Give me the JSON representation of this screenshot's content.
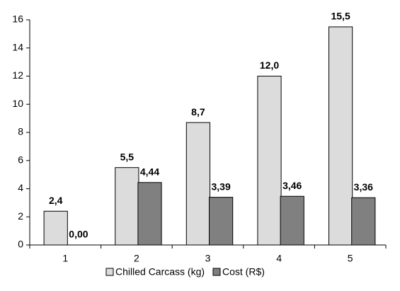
{
  "chart_data": {
    "type": "bar",
    "categories": [
      "1",
      "2",
      "3",
      "4",
      "5"
    ],
    "series": [
      {
        "name": "Chilled Carcass (kg)",
        "color": "#dcdcdc",
        "values": [
          2.4,
          5.5,
          8.7,
          12.0,
          15.5
        ],
        "value_labels": [
          "2,4",
          "5,5",
          "8,7",
          "12,0",
          "15,5"
        ]
      },
      {
        "name": "Cost (R$)",
        "color": "#808080",
        "values": [
          0,
          4.44,
          3.39,
          3.46,
          3.36
        ],
        "value_labels": [
          "0,00",
          "4,44",
          "3,39",
          "3,46",
          "3,36"
        ]
      }
    ],
    "ylim": [
      0,
      16
    ],
    "yticks": [
      0,
      2,
      4,
      6,
      8,
      10,
      12,
      14,
      16
    ],
    "grid": false,
    "legend": "bottom"
  }
}
